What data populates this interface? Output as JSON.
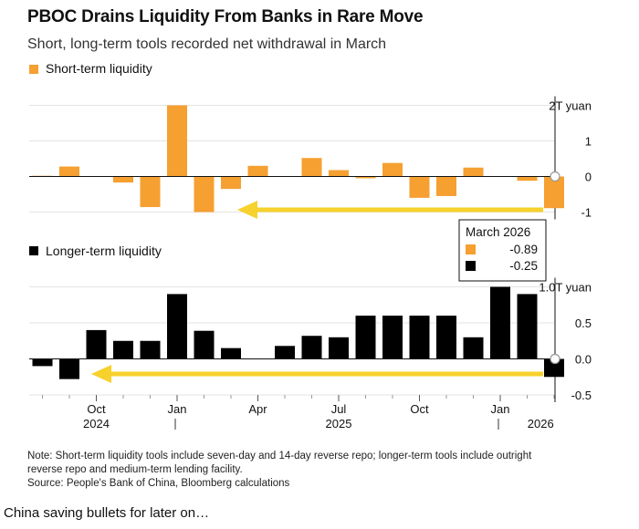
{
  "title": "PBOC Drains Liquidity From Banks in Rare Move",
  "subtitle": "Short, long-term tools recorded net withdrawal in March",
  "note_line1": "Note: Short-term liquidity tools include seven-day and 14-day reverse repo; longer-term tools include outright",
  "note_line2": "reverse repo and medium-term lending facility.",
  "source": "Source: People's Bank of China, Bloomberg calculations",
  "caption": "China saving bullets for later on…",
  "colors": {
    "short": "#f5a031",
    "long": "#000000",
    "arrow": "#f7d12c",
    "grid": "#e3e3e3"
  },
  "tooltip": {
    "title": "March 2026",
    "rows": [
      {
        "series": "short",
        "value": "-0.89"
      },
      {
        "series": "long",
        "value": "-0.25"
      }
    ]
  },
  "x_axis": {
    "ticks": [
      {
        "label": "Oct",
        "index": 2
      },
      {
        "label": "Jan",
        "index": 5
      },
      {
        "label": "Apr",
        "index": 8
      },
      {
        "label": "Jul",
        "index": 11
      },
      {
        "label": "Oct",
        "index": 14
      },
      {
        "label": "Jan",
        "index": 17
      }
    ],
    "years": [
      {
        "label": "2024",
        "index": 2
      },
      {
        "label": "2025",
        "index": 11
      },
      {
        "label": "2026",
        "index": 18.5
      }
    ]
  },
  "chart_data": [
    {
      "type": "bar",
      "legend": "Short-term liquidity",
      "series": [
        {
          "name": "Short-term liquidity",
          "values": [
            0.02,
            0.28,
            0.0,
            -0.17,
            -0.86,
            2.0,
            -1.0,
            -0.35,
            0.3,
            0.0,
            0.52,
            0.18,
            -0.05,
            0.38,
            -0.6,
            -0.55,
            0.25,
            0.0,
            -0.12,
            -0.89
          ]
        }
      ],
      "yticks": [
        {
          "value": 2,
          "label": "2T yuan"
        },
        {
          "value": 1,
          "label": "1"
        },
        {
          "value": 0,
          "label": "0"
        },
        {
          "value": -1,
          "label": "-1"
        }
      ],
      "ylim": [
        -1.0,
        2.0
      ],
      "annotation": "arrow-left"
    },
    {
      "type": "bar",
      "legend": "Longer-term liquidity",
      "series": [
        {
          "name": "Longer-term liquidity",
          "values": [
            -0.1,
            -0.28,
            0.4,
            0.25,
            0.25,
            0.9,
            0.39,
            0.15,
            0.0,
            0.18,
            0.32,
            0.3,
            0.6,
            0.6,
            0.6,
            0.6,
            0.3,
            1.0,
            0.9,
            -0.25
          ]
        }
      ],
      "yticks": [
        {
          "value": 1.0,
          "label": "1.0T yuan"
        },
        {
          "value": 0.5,
          "label": "0.5"
        },
        {
          "value": 0.0,
          "label": "0.0"
        },
        {
          "value": -0.5,
          "label": "-0.5"
        }
      ],
      "ylim": [
        -0.5,
        1.0
      ],
      "annotation": "arrow-left"
    }
  ]
}
